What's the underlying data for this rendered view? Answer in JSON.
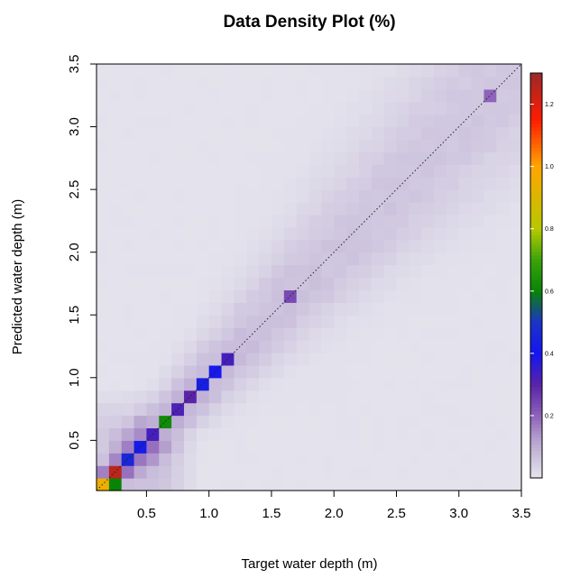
{
  "chart_data": {
    "type": "heatmap",
    "title": "Data Density Plot (%)",
    "xlabel": "Target water depth (m)",
    "ylabel": "Predicted water depth (m)",
    "xlim": [
      0.1,
      3.5
    ],
    "ylim": [
      0.1,
      3.5
    ],
    "bins_per_axis": 34,
    "x_ticks": [
      "0.5",
      "1.0",
      "1.5",
      "2.0",
      "2.5",
      "3.0",
      "3.5"
    ],
    "y_ticks": [
      "0.5",
      "1.0",
      "1.5",
      "2.0",
      "2.5",
      "3.0",
      "3.5"
    ],
    "x_tick_values": [
      0.5,
      1.0,
      1.5,
      2.0,
      2.5,
      3.0,
      3.5
    ],
    "y_tick_values": [
      0.5,
      1.0,
      1.5,
      2.0,
      2.5,
      3.0,
      3.5
    ],
    "reference_line": "1:1 dotted diagonal",
    "grid": false,
    "colorbar": {
      "position": "right",
      "range": [
        0.0,
        1.3
      ],
      "ticks": [
        "0.2",
        "0.4",
        "0.6",
        "0.8",
        "1.0",
        "1.2"
      ],
      "tick_values": [
        0.2,
        0.4,
        0.6,
        0.8,
        1.0,
        1.2
      ],
      "colors": [
        {
          "v": 0.0,
          "c": "#e6e6ee"
        },
        {
          "v": 0.12,
          "c": "#b7a4cf"
        },
        {
          "v": 0.2,
          "c": "#8e63ba"
        },
        {
          "v": 0.3,
          "c": "#5a24a8"
        },
        {
          "v": 0.4,
          "c": "#1515f0"
        },
        {
          "v": 0.5,
          "c": "#1c33c8"
        },
        {
          "v": 0.6,
          "c": "#078407"
        },
        {
          "v": 0.7,
          "c": "#3aa30a"
        },
        {
          "v": 0.8,
          "c": "#b6c800"
        },
        {
          "v": 1.0,
          "c": "#ffa600"
        },
        {
          "v": 1.15,
          "c": "#ff1c00"
        },
        {
          "v": 1.3,
          "c": "#9a2a28"
        }
      ]
    },
    "peak_cells": [
      {
        "x": 0.15,
        "y": 0.15,
        "value": 0.95
      },
      {
        "x": 0.25,
        "y": 0.25,
        "value": 1.25
      },
      {
        "x": 0.25,
        "y": 0.15,
        "value": 0.6
      },
      {
        "x": 0.35,
        "y": 0.35,
        "value": 0.46
      },
      {
        "x": 0.45,
        "y": 0.45,
        "value": 0.42
      },
      {
        "x": 0.55,
        "y": 0.55,
        "value": 0.33
      },
      {
        "x": 0.65,
        "y": 0.65,
        "value": 0.62
      },
      {
        "x": 0.75,
        "y": 0.75,
        "value": 0.32
      },
      {
        "x": 0.85,
        "y": 0.85,
        "value": 0.3
      },
      {
        "x": 0.95,
        "y": 0.95,
        "value": 0.43
      },
      {
        "x": 1.05,
        "y": 1.05,
        "value": 0.41
      },
      {
        "x": 1.15,
        "y": 1.15,
        "value": 0.33
      },
      {
        "x": 1.65,
        "y": 1.65,
        "value": 0.24
      },
      {
        "x": 3.25,
        "y": 3.25,
        "value": 0.2
      }
    ]
  }
}
